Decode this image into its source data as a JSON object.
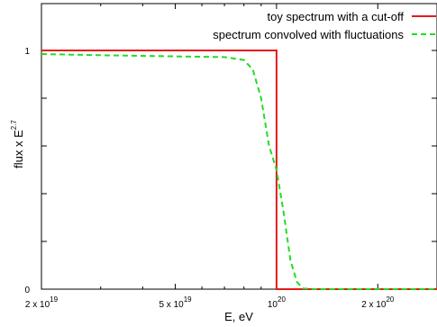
{
  "chart_data": {
    "type": "line",
    "x_scale": "log",
    "xlabel": "E, eV",
    "ylabel_base": "flux x E",
    "ylabel_exp": "2.7",
    "xlim": [
      2e+19,
      3e+20
    ],
    "ylim": [
      0,
      1.2
    ],
    "grid": false,
    "legend_position": "top-right",
    "x_ticks": [
      {
        "value": 2e+19,
        "mantissa": "2 x 10",
        "exp": "19"
      },
      {
        "value": 5e+19,
        "mantissa": "5 x 10",
        "exp": "19"
      },
      {
        "value": 1e+20,
        "mantissa": "10",
        "exp": "20"
      },
      {
        "value": 2e+20,
        "mantissa": "2 x 10",
        "exp": "20"
      }
    ],
    "y_ticks": [
      {
        "value": 0,
        "label": "0"
      },
      {
        "value": 1,
        "label": "1"
      }
    ],
    "series": [
      {
        "name": "toy spectrum with a cut-off",
        "color": "#e41a1c",
        "style": "solid",
        "points": [
          [
            2e+19,
            1.0
          ],
          [
            1e+20,
            1.0
          ],
          [
            1e+20,
            0.0
          ],
          [
            3e+20,
            0.0
          ]
        ]
      },
      {
        "name": "spectrum convolved with fluctuations",
        "color": "#22dd22",
        "style": "dashed",
        "points": [
          [
            2e+19,
            0.985
          ],
          [
            3e+19,
            0.98
          ],
          [
            5e+19,
            0.975
          ],
          [
            7e+19,
            0.972
          ],
          [
            8e+19,
            0.96
          ],
          [
            8.5e+19,
            0.92
          ],
          [
            9e+19,
            0.8
          ],
          [
            9.5e+19,
            0.6
          ],
          [
            1e+20,
            0.5
          ],
          [
            1.05e+20,
            0.32
          ],
          [
            1.1e+20,
            0.12
          ],
          [
            1.15e+20,
            0.03
          ],
          [
            1.2e+20,
            0.003
          ],
          [
            1.3e+20,
            0.0
          ],
          [
            3e+20,
            0.0
          ]
        ]
      }
    ]
  }
}
